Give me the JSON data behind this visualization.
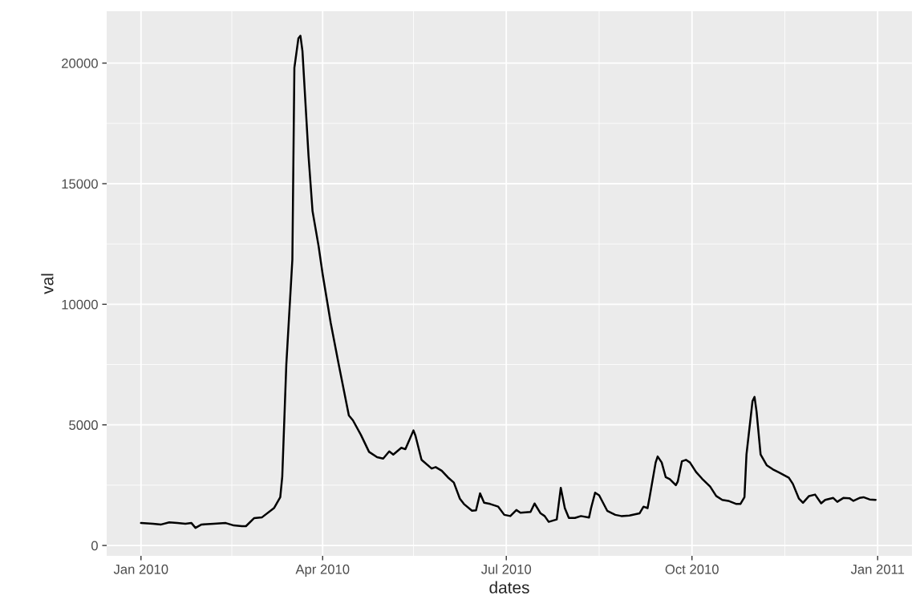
{
  "chart_data": {
    "type": "line",
    "xlabel": "dates",
    "ylabel": "val",
    "x": [
      "2010-01-01",
      "2010-01-07",
      "2010-01-11",
      "2010-01-15",
      "2010-01-19",
      "2010-01-23",
      "2010-01-26",
      "2010-01-28",
      "2010-01-31",
      "2010-02-06",
      "2010-02-12",
      "2010-02-16",
      "2010-02-20",
      "2010-02-22",
      "2010-02-26",
      "2010-03-02",
      "2010-03-08",
      "2010-03-11",
      "2010-03-12",
      "2010-03-14",
      "2010-03-17",
      "2010-03-18",
      "2010-03-20",
      "2010-03-21",
      "2010-03-22",
      "2010-03-25",
      "2010-03-27",
      "2010-03-30",
      "2010-04-01",
      "2010-04-05",
      "2010-04-09",
      "2010-04-14",
      "2010-04-16",
      "2010-04-20",
      "2010-04-24",
      "2010-04-28",
      "2010-05-01",
      "2010-05-04",
      "2010-05-06",
      "2010-05-10",
      "2010-05-12",
      "2010-05-16",
      "2010-05-17",
      "2010-05-20",
      "2010-05-25",
      "2010-05-27",
      "2010-05-30",
      "2010-06-02",
      "2010-06-05",
      "2010-06-08",
      "2010-06-10",
      "2010-06-14",
      "2010-06-16",
      "2010-06-18",
      "2010-06-20",
      "2010-06-23",
      "2010-06-27",
      "2010-06-30",
      "2010-07-03",
      "2010-07-06",
      "2010-07-08",
      "2010-07-13",
      "2010-07-15",
      "2010-07-18",
      "2010-07-20",
      "2010-07-22",
      "2010-07-26",
      "2010-07-28",
      "2010-07-30",
      "2010-08-01",
      "2010-08-04",
      "2010-08-07",
      "2010-08-11",
      "2010-08-12",
      "2010-08-14",
      "2010-08-16",
      "2010-08-20",
      "2010-08-24",
      "2010-08-27",
      "2010-08-31",
      "2010-09-05",
      "2010-09-07",
      "2010-09-09",
      "2010-09-10",
      "2010-09-13",
      "2010-09-14",
      "2010-09-16",
      "2010-09-18",
      "2010-09-20",
      "2010-09-23",
      "2010-09-24",
      "2010-09-26",
      "2010-09-28",
      "2010-09-30",
      "2010-10-03",
      "2010-10-06",
      "2010-10-10",
      "2010-10-13",
      "2010-10-16",
      "2010-10-19",
      "2010-10-23",
      "2010-10-25",
      "2010-10-27",
      "2010-10-28",
      "2010-10-31",
      "2010-11-01",
      "2010-11-02",
      "2010-11-04",
      "2010-11-07",
      "2010-11-10",
      "2010-11-13",
      "2010-11-18",
      "2010-11-20",
      "2010-11-23",
      "2010-11-25",
      "2010-11-28",
      "2010-12-01",
      "2010-12-04",
      "2010-12-06",
      "2010-12-10",
      "2010-12-12",
      "2010-12-15",
      "2010-12-18",
      "2010-12-20",
      "2010-12-23",
      "2010-12-25",
      "2010-12-28",
      "2010-12-31"
    ],
    "series": [
      {
        "color": "#000000",
        "values": [
          930,
          900,
          870,
          960,
          930,
          900,
          930,
          730,
          870,
          900,
          930,
          830,
          800,
          800,
          1130,
          1170,
          1560,
          2000,
          2860,
          7490,
          11850,
          19800,
          21030,
          21130,
          20500,
          16170,
          13860,
          12410,
          11250,
          9230,
          7490,
          5390,
          5190,
          4580,
          3880,
          3660,
          3600,
          3900,
          3770,
          4050,
          3990,
          4770,
          4550,
          3550,
          3190,
          3250,
          3100,
          2830,
          2610,
          1940,
          1720,
          1440,
          1460,
          2160,
          1770,
          1720,
          1610,
          1270,
          1220,
          1470,
          1360,
          1390,
          1740,
          1330,
          1220,
          980,
          1080,
          2390,
          1550,
          1140,
          1140,
          1220,
          1160,
          1550,
          2190,
          2080,
          1440,
          1270,
          1220,
          1240,
          1330,
          1610,
          1550,
          2000,
          3440,
          3690,
          3440,
          2830,
          2750,
          2500,
          2660,
          3490,
          3550,
          3440,
          3050,
          2770,
          2440,
          2050,
          1890,
          1850,
          1720,
          1720,
          2000,
          3770,
          5990,
          6160,
          5550,
          3770,
          3330,
          3160,
          3030,
          2810,
          2550,
          1940,
          1770,
          2050,
          2110,
          1750,
          1890,
          1970,
          1810,
          1970,
          1960,
          1850,
          1970,
          2000,
          1910,
          1890
        ]
      }
    ],
    "xlim": [
      "2009-12-15",
      "2011-01-18"
    ],
    "xticks": [
      {
        "value": "2010-01-01",
        "label": "Jan 2010"
      },
      {
        "value": "2010-02-15",
        "label": null
      },
      {
        "value": "2010-04-01",
        "label": "Apr 2010"
      },
      {
        "value": "2010-05-16",
        "label": null
      },
      {
        "value": "2010-07-01",
        "label": "Jul 2010"
      },
      {
        "value": "2010-08-16",
        "label": null
      },
      {
        "value": "2010-10-01",
        "label": "Oct 2010"
      },
      {
        "value": "2010-11-16",
        "label": null
      },
      {
        "value": "2011-01-01",
        "label": "Jan 2011"
      }
    ],
    "ylim": [
      -430,
      22150
    ],
    "yticks": [
      0,
      {
        "value": 2500,
        "label": null
      },
      5000,
      {
        "value": 7500,
        "label": null
      },
      10000,
      {
        "value": 12500,
        "label": null
      },
      15000,
      {
        "value": 17500,
        "label": null
      },
      20000
    ],
    "grid": true,
    "line_style": "solid"
  }
}
